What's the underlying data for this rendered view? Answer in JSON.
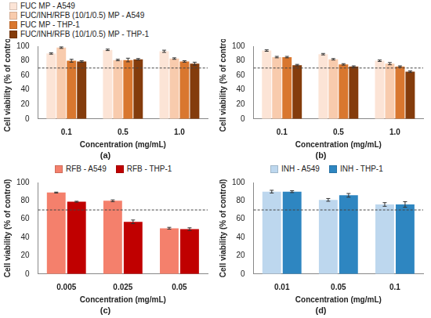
{
  "chart_data": [
    {
      "type": "bar",
      "title": "(a)",
      "x_label": "Concentration (mg/mL)",
      "y_label": "Cell viability (% of control)",
      "categories": [
        "0.1",
        "0.5",
        "1.0"
      ],
      "series": [
        {
          "name": "FUC MP - A549",
          "color": "#fce4d6",
          "values": [
            90,
            95,
            93
          ],
          "errors": [
            1,
            1,
            1.5
          ]
        },
        {
          "name": "FUC/INH/RFB (10/1/0.5) MP - A549",
          "color": "#f8cbad",
          "values": [
            98,
            81,
            83
          ],
          "errors": [
            1,
            1,
            1
          ]
        },
        {
          "name": "FUC MP - THP-1",
          "color": "#d9772f",
          "values": [
            80,
            81,
            79
          ],
          "errors": [
            2,
            2.5,
            1
          ]
        },
        {
          "name": "FUC/INH/RFB (10/1/0.5) MP - THP-1",
          "color": "#843c0c",
          "values": [
            79,
            82,
            76
          ],
          "errors": [
            1,
            1,
            2
          ]
        }
      ],
      "ylim": [
        0,
        100
      ],
      "yticks": [
        0,
        20,
        40,
        60,
        80,
        100
      ],
      "grid": false,
      "legend": "top",
      "reference_line": 70
    },
    {
      "type": "bar",
      "title": "(b)",
      "x_label": "Concentration (mg/mL)",
      "y_label": "Cell viability (% of control)",
      "categories": [
        "0.1",
        "0.5",
        "1.0"
      ],
      "series": [
        {
          "name": "FUC MP - A549",
          "color": "#fce4d6",
          "values": [
            94,
            89,
            80
          ],
          "errors": [
            1,
            1,
            1
          ]
        },
        {
          "name": "FUC/INH/RFB (10/1/0.5) MP - A549",
          "color": "#f8cbad",
          "values": [
            85,
            82,
            76
          ],
          "errors": [
            1,
            1,
            1.5
          ]
        },
        {
          "name": "FUC MP - THP-1",
          "color": "#d9772f",
          "values": [
            85,
            75,
            72
          ],
          "errors": [
            1,
            1,
            1
          ]
        },
        {
          "name": "FUC/INH/RFB (10/1/0.5) MP - THP-1",
          "color": "#843c0c",
          "values": [
            74,
            72,
            65
          ],
          "errors": [
            1,
            1,
            1
          ]
        }
      ],
      "ylim": [
        0,
        100
      ],
      "yticks": [
        0,
        20,
        40,
        60,
        80,
        100
      ],
      "grid": false,
      "reference_line": 70
    },
    {
      "type": "bar",
      "title": "(c)",
      "x_label": "Concentration (mg/mL)",
      "y_label": "Cell viability (% of control)",
      "categories": [
        "0.005",
        "0.025",
        "0.05"
      ],
      "series": [
        {
          "name": "RFB - A549",
          "color": "#f4806c",
          "values": [
            89,
            80,
            50
          ],
          "errors": [
            0.5,
            1,
            1
          ]
        },
        {
          "name": "RFB - THP-1",
          "color": "#c00000",
          "values": [
            79,
            57,
            49
          ],
          "errors": [
            0.5,
            2,
            1.5
          ]
        }
      ],
      "ylim": [
        0,
        100
      ],
      "yticks": [
        0,
        20,
        40,
        60,
        80,
        100
      ],
      "grid": false,
      "legend": "top",
      "reference_line": 70
    },
    {
      "type": "bar",
      "title": "(d)",
      "x_label": "Concentration (mg/mL)",
      "y_label": "Cell viability (% of control)",
      "categories": [
        "0.01",
        "0.05",
        "0.1"
      ],
      "series": [
        {
          "name": "INH - A549",
          "color": "#bdd7ee",
          "values": [
            90,
            81,
            76
          ],
          "errors": [
            1.5,
            1.5,
            2
          ]
        },
        {
          "name": "INH - THP-1",
          "color": "#2e86c1",
          "values": [
            90,
            86,
            76
          ],
          "errors": [
            1,
            2,
            3
          ]
        }
      ],
      "ylim": [
        0,
        100
      ],
      "yticks": [
        0,
        20,
        40,
        60,
        80,
        100
      ],
      "grid": false,
      "legend": "top",
      "reference_line": 70
    }
  ]
}
